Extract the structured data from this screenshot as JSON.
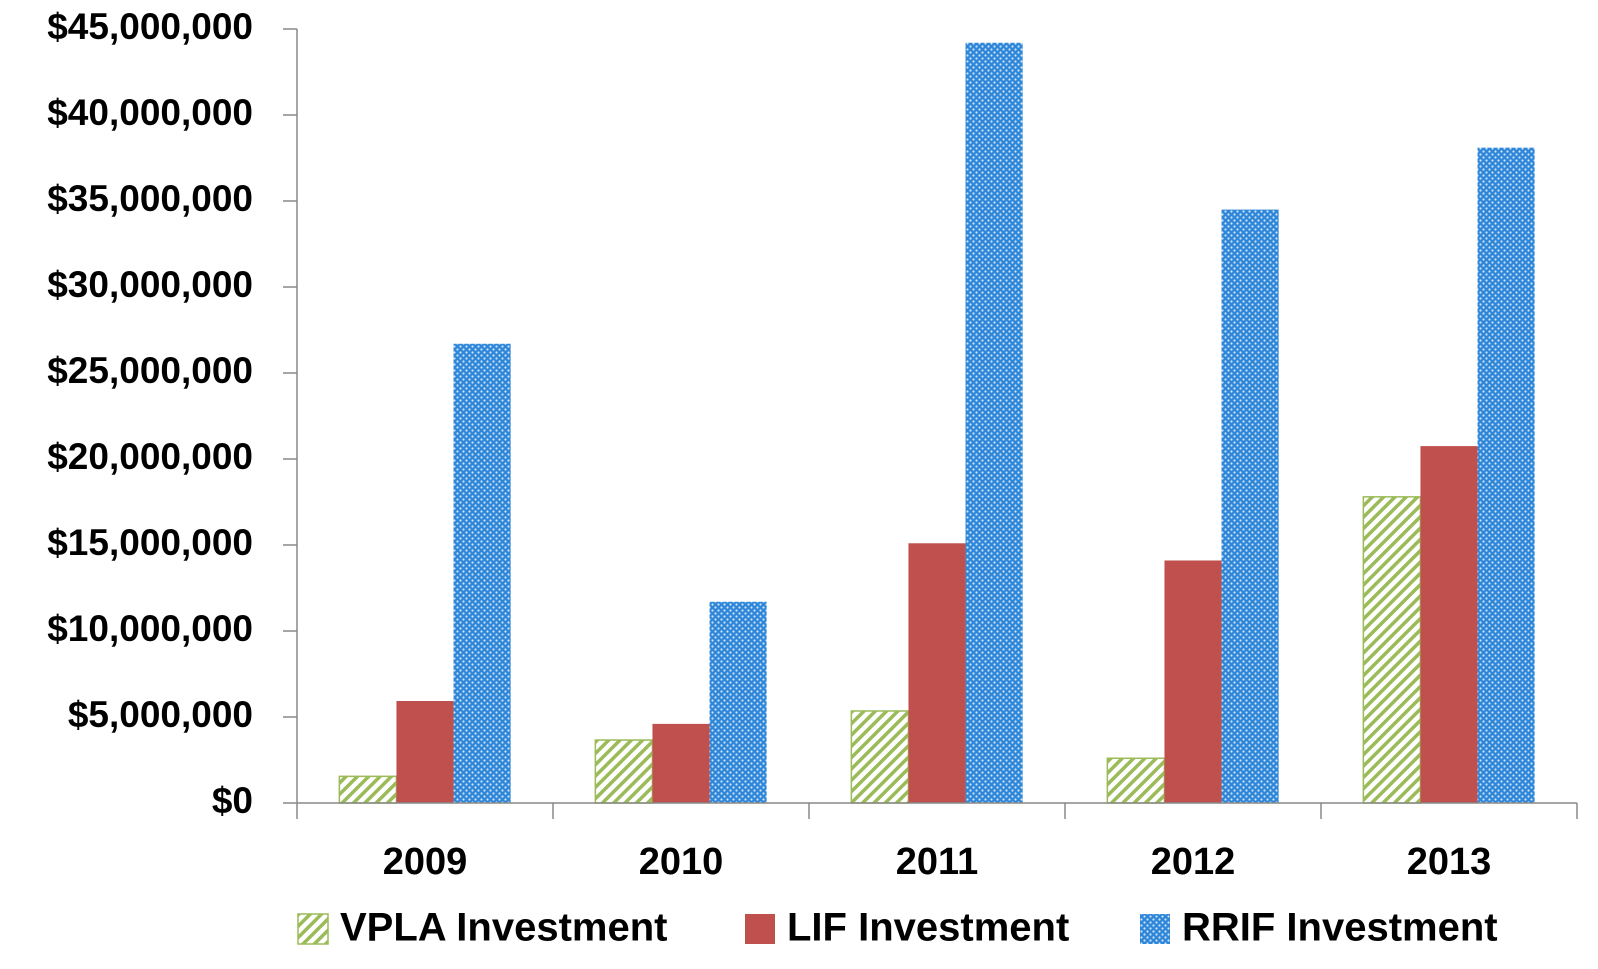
{
  "chart_data": {
    "type": "bar",
    "categories": [
      "2009",
      "2010",
      "2011",
      "2012",
      "2013"
    ],
    "series": [
      {
        "name": "VPLA Investment",
        "color": "#9bbb59",
        "pattern": "hatch",
        "values": [
          1550000,
          3660000,
          5350000,
          2600000,
          17800000
        ]
      },
      {
        "name": "LIF Investment",
        "color": "#c0504d",
        "pattern": "solid",
        "values": [
          5930000,
          4600000,
          15100000,
          14100000,
          20750000
        ]
      },
      {
        "name": "RRIF Investment",
        "color": "#2e86d8",
        "pattern": "dots",
        "values": [
          26700000,
          11700000,
          44200000,
          34500000,
          38100000
        ]
      }
    ],
    "ylim": [
      0,
      45000000
    ],
    "yticks": [
      {
        "value": 0,
        "label": "$0"
      },
      {
        "value": 5000000,
        "label": "$5,000,000"
      },
      {
        "value": 10000000,
        "label": "$10,000,000"
      },
      {
        "value": 15000000,
        "label": "$15,000,000"
      },
      {
        "value": 20000000,
        "label": "$20,000,000"
      },
      {
        "value": 25000000,
        "label": "$25,000,000"
      },
      {
        "value": 30000000,
        "label": "$30,000,000"
      },
      {
        "value": 35000000,
        "label": "$35,000,000"
      },
      {
        "value": 40000000,
        "label": "$40,000,000"
      },
      {
        "value": 45000000,
        "label": "$45,000,000"
      }
    ],
    "legend": "bottom"
  }
}
